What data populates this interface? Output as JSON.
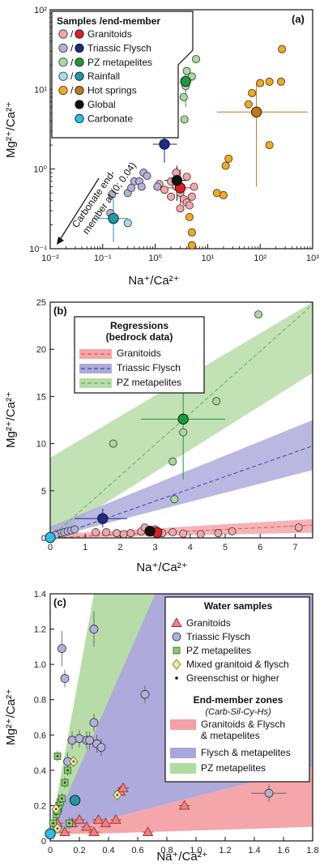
{
  "chart_data": [
    {
      "panel": "(a)",
      "type": "scatter",
      "xscale": "log",
      "yscale": "log",
      "xlabel": "Na⁺/Ca²⁺",
      "ylabel": "Mg²⁺/Ca²⁺",
      "xlim": [
        0.01,
        1000
      ],
      "ylim": [
        0.1,
        100
      ],
      "xticks": [
        "10⁻²",
        "10⁻¹",
        "10⁰",
        "10¹",
        "10²",
        "10³"
      ],
      "yticks": [
        "10⁻¹",
        "10⁰",
        "10¹",
        "10²"
      ],
      "legend_title": "Samples /end-member",
      "legend": [
        {
          "label": "Granitoids",
          "light": "#f4a6a6",
          "dark": "#e02020"
        },
        {
          "label": "Triassic Flysch",
          "light": "#b3b0dc",
          "dark": "#1f2a8a"
        },
        {
          "label": "PZ metapelites",
          "light": "#a8d8a0",
          "dark": "#1a9a3a"
        },
        {
          "label": "Rainfall",
          "light": "#a8dce8",
          "dark": "#1a9aa8"
        },
        {
          "label": "Hot springs",
          "light": "#f4a81a",
          "dark": "#c07818"
        },
        {
          "label": "Global",
          "light": null,
          "dark": "#111111"
        },
        {
          "label": "Carbonate",
          "light": null,
          "dark": "#2ac0e8"
        }
      ],
      "annotation": [
        "Carbonate end-",
        "member at (0; 0.04)"
      ],
      "series": [
        {
          "name": "Granitoids",
          "points": [
            [
              1.5,
              0.55
            ],
            [
              2,
              0.45
            ],
            [
              2.5,
              0.6
            ],
            [
              3,
              0.5
            ],
            [
              3.5,
              0.42
            ],
            [
              4,
              0.38
            ],
            [
              5,
              0.45
            ],
            [
              5.5,
              0.6
            ],
            [
              3,
              0.32
            ],
            [
              4.5,
              0.35
            ],
            [
              2,
              0.7
            ],
            [
              1.2,
              0.65
            ],
            [
              5,
              0.11
            ],
            [
              2.5,
              0.9
            ],
            [
              4,
              0.8
            ]
          ]
        },
        {
          "name": "Triassic Flysch",
          "points": [
            [
              0.14,
              0.28
            ],
            [
              0.15,
              0.48
            ],
            [
              0.3,
              0.5
            ],
            [
              0.4,
              0.7
            ],
            [
              0.5,
              0.7
            ],
            [
              0.6,
              0.9
            ],
            [
              0.7,
              0.82
            ],
            [
              1.1,
              0.6
            ],
            [
              0.35,
              0.58
            ],
            [
              0.55,
              0.6
            ]
          ]
        },
        {
          "name": "PZ metapelites",
          "points": [
            [
              1.8,
              10
            ],
            [
              3.5,
              8
            ],
            [
              3.8,
              11
            ],
            [
              4,
              17
            ],
            [
              6,
              24
            ],
            [
              5,
              14.5
            ],
            [
              3.6,
              4.2
            ],
            [
              3.8,
              12.5
            ]
          ]
        },
        {
          "name": "Hot springs",
          "points": [
            [
              4.5,
              0.25
            ],
            [
              5,
              0.16
            ],
            [
              5,
              0.11
            ],
            [
              15,
              0.5
            ],
            [
              20,
              0.47
            ],
            [
              22,
              1.1
            ],
            [
              25,
              1.35
            ],
            [
              60,
              6.5
            ],
            [
              70,
              9
            ],
            [
              100,
              12
            ],
            [
              150,
              2
            ],
            [
              150,
              12.5
            ],
            [
              250,
              12.5
            ],
            [
              260,
              32
            ]
          ]
        },
        {
          "name": "Rainfall",
          "points": [
            [
              0.3,
              0.21
            ]
          ]
        }
      ],
      "end_members": [
        {
          "name": "Granitoids",
          "x": 3,
          "y": 0.58
        },
        {
          "name": "Triassic Flysch",
          "x": 1.5,
          "y": 2.05
        },
        {
          "name": "PZ metapelites",
          "x": 3.8,
          "y": 12.6
        },
        {
          "name": "Rainfall",
          "x": 0.16,
          "y": 0.24
        },
        {
          "name": "Hot springs",
          "x": 85,
          "y": 5.2
        },
        {
          "name": "Global",
          "x": 2.6,
          "y": 0.72
        }
      ]
    },
    {
      "panel": "(b)",
      "type": "scatter",
      "xlabel": "Na⁺/Ca²⁺",
      "ylabel": "Mg²⁺/Ca²⁺",
      "xlim": [
        0,
        7.5
      ],
      "ylim": [
        0,
        25
      ],
      "xticks": [
        0,
        1,
        2,
        3,
        4,
        5,
        6,
        7
      ],
      "yticks": [
        0,
        5,
        10,
        15,
        20,
        25
      ],
      "legend_title": [
        "Regressions",
        "(bedrock data)"
      ],
      "legend": [
        {
          "label": "Granitoids",
          "color": "#e05050"
        },
        {
          "label": "Triassic Flysch",
          "color": "#3a4aa0"
        },
        {
          "label": "PZ metapelites",
          "color": "#6ab04c"
        }
      ],
      "regressions": [
        {
          "name": "Granitoids",
          "slope": 0.18,
          "band": [
            [
              0,
              0
            ],
            [
              7.5,
              0.55
            ],
            [
              7.5,
              2.0
            ],
            [
              0,
              0.35
            ]
          ]
        },
        {
          "name": "Triassic Flysch",
          "slope": 1.3,
          "band": [
            [
              0,
              0
            ],
            [
              7.5,
              7.2
            ],
            [
              7.5,
              12.5
            ],
            [
              0,
              1.2
            ]
          ]
        },
        {
          "name": "PZ metapelites",
          "slope": 3.3,
          "band": [
            [
              0,
              0
            ],
            [
              7.5,
              17.5
            ],
            [
              7.5,
              25
            ],
            [
              0,
              8.5
            ]
          ]
        }
      ],
      "series": [
        {
          "name": "PZ metapelites",
          "points": [
            [
              1.8,
              10
            ],
            [
              3.5,
              8.1
            ],
            [
              3.8,
              11.2
            ],
            [
              3.95,
              17.1
            ],
            [
              4.75,
              14.5
            ],
            [
              5.95,
              23.7
            ],
            [
              3.55,
              4.1
            ]
          ]
        },
        {
          "name": "Granitoids",
          "points": [
            [
              1.3,
              0.6
            ],
            [
              1.6,
              0.6
            ],
            [
              1.9,
              0.5
            ],
            [
              2.1,
              0.4
            ],
            [
              2.3,
              0.5
            ],
            [
              2.6,
              0.7
            ],
            [
              2.9,
              0.6
            ],
            [
              3.2,
              0.5
            ],
            [
              3.5,
              0.6
            ],
            [
              3.8,
              0.45
            ],
            [
              4.3,
              0.4
            ],
            [
              4.8,
              0.5
            ],
            [
              5.2,
              0.7
            ],
            [
              7.1,
              1.1
            ],
            [
              2.7,
              1.1
            ],
            [
              3.0,
              0.9
            ]
          ]
        },
        {
          "name": "Triassic Flysch",
          "points": [
            [
              0.2,
              0.4
            ],
            [
              0.3,
              0.5
            ],
            [
              0.4,
              0.6
            ],
            [
              0.5,
              0.7
            ],
            [
              0.6,
              0.8
            ],
            [
              0.7,
              0.9
            ],
            [
              0.15,
              0.3
            ]
          ]
        }
      ],
      "end_members": [
        {
          "name": "PZ metapelites",
          "x": 3.8,
          "y": 12.6
        },
        {
          "name": "Triassic Flysch",
          "x": 1.5,
          "y": 2.05
        },
        {
          "name": "Granitoids",
          "x": 3.05,
          "y": 0.58
        },
        {
          "name": "Global",
          "x": 2.85,
          "y": 0.72
        },
        {
          "name": "Carbonate",
          "x": 0,
          "y": 0.04
        }
      ]
    },
    {
      "panel": "(c)",
      "type": "scatter",
      "xlabel": "Na⁺/Ca²⁺",
      "ylabel": "Mg²⁺/Ca²⁺",
      "xlim": [
        0,
        1.8
      ],
      "ylim": [
        0,
        1.4
      ],
      "xticks": [
        "0",
        "0.2",
        "0.4",
        "0.6",
        "0.8",
        "1.0",
        "1.2",
        "1.4",
        "1.6",
        "1.8"
      ],
      "yticks": [
        "0",
        "0.2",
        "0.4",
        "0.6",
        "0.8",
        "1.0",
        "1.2",
        "1.4"
      ],
      "legend_title": "Water samples",
      "legend": [
        {
          "label": "Granitoids",
          "marker": "triangle"
        },
        {
          "label": "Triassic Flysch",
          "marker": "circle"
        },
        {
          "label": "PZ metapelites",
          "marker": "square"
        },
        {
          "label": "Mixed granitoid & flysch",
          "marker": "diamond"
        },
        {
          "label": "Greenschist or higher",
          "marker": "dot"
        }
      ],
      "zones_title": "End-member zones",
      "zones_subtitle": "(Carb-Sil-Cy-Hs)",
      "zones": [
        {
          "label": "Granitoids & Flysch & metapelites",
          "color": "#f4a0a4"
        },
        {
          "label": "Flysch & metapelites",
          "color": "#a8a6dc"
        },
        {
          "label": "PZ metapelites",
          "color": "#b0dca0"
        }
      ],
      "series": [
        {
          "name": "Granitoids",
          "points": [
            [
              0.05,
              0.1
            ],
            [
              0.1,
              0.05
            ],
            [
              0.15,
              0.1
            ],
            [
              0.2,
              0.12
            ],
            [
              0.25,
              0.08
            ],
            [
              0.3,
              0.05
            ],
            [
              0.33,
              0.12
            ],
            [
              0.38,
              0.1
            ],
            [
              0.45,
              0.12
            ],
            [
              0.48,
              0.28
            ],
            [
              0.5,
              0.3
            ],
            [
              0.92,
              0.2
            ],
            [
              0.67,
              0.05
            ]
          ]
        },
        {
          "name": "Triassic Flysch",
          "points": [
            [
              0.08,
              1.09
            ],
            [
              0.1,
              0.92
            ],
            [
              0.3,
              1.2
            ],
            [
              0.15,
              0.57
            ],
            [
              0.2,
              0.58
            ],
            [
              0.25,
              0.57
            ],
            [
              0.27,
              0.57
            ],
            [
              0.3,
              0.67
            ],
            [
              0.32,
              0.55
            ],
            [
              0.35,
              0.53
            ],
            [
              0.12,
              0.45
            ],
            [
              0.65,
              0.83
            ],
            [
              1.5,
              0.27
            ],
            [
              0.05,
              0.17
            ]
          ]
        },
        {
          "name": "PZ metapelites",
          "points": [
            [
              0.02,
              0.1
            ],
            [
              0.04,
              0.15
            ],
            [
              0.05,
              0.17
            ],
            [
              0.06,
              0.2
            ],
            [
              0.07,
              0.22
            ],
            [
              0.08,
              0.24
            ],
            [
              0.1,
              0.33
            ],
            [
              0.12,
              0.4
            ],
            [
              0.05,
              0.48
            ],
            [
              0.13,
              0.1
            ]
          ]
        },
        {
          "name": "Mixed granitoid & flysch",
          "points": [
            [
              0.16,
              0.45
            ],
            [
              0.46,
              0.26
            ],
            [
              0.05,
              0.07
            ],
            [
              0.04,
              0.18
            ]
          ]
        }
      ],
      "end_members": [
        {
          "name": "Carbonate",
          "x": 0,
          "y": 0.04
        },
        {
          "name": "Granitoids",
          "x": 0.17,
          "y": 0.23
        }
      ]
    }
  ]
}
